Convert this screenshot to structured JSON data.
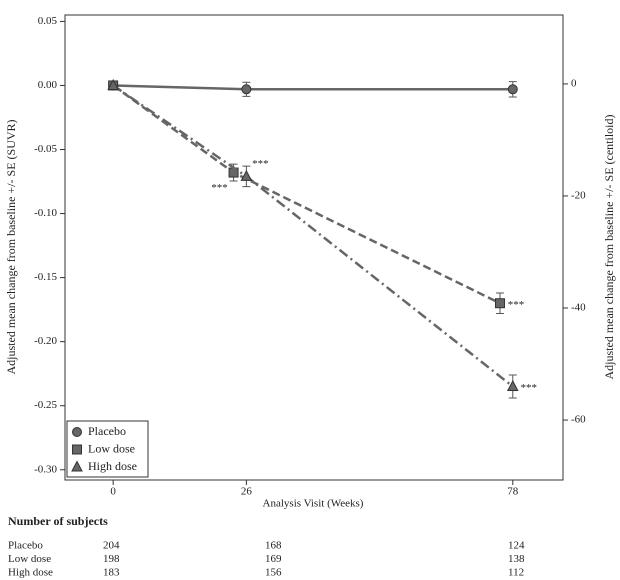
{
  "chart_data": {
    "type": "line",
    "ylabel": "Adjusted mean change from baseline +/- SE (SUVR)",
    "y2label": "Adjusted mean change from baseline +/- SE (centiloid)",
    "xlabel": "Analysis Visit (Weeks)",
    "xlim": [
      -9.4,
      87.8
    ],
    "xticks": [
      0,
      26,
      78
    ],
    "ylim": [
      -0.308,
      0.055
    ],
    "yticks": [
      0.05,
      {
        "value": 0,
        "label": "0.00"
      },
      -0.05,
      {
        "value": -0.1,
        "label": "-0.10"
      },
      -0.15,
      {
        "value": -0.2,
        "label": "-0.20"
      },
      -0.25,
      {
        "value": -0.3,
        "label": "-0.30"
      }
    ],
    "y2lim": [
      -70.7,
      12.3
    ],
    "y2ticks": [
      0,
      -20,
      -40,
      -60
    ],
    "legend": "lower left",
    "series": [
      {
        "name": "Placebo",
        "color": "#666666",
        "line_style": "solid",
        "marker": "circle",
        "x": [
          0,
          26,
          78
        ],
        "values": [
          0,
          -0.003,
          -0.003
        ],
        "errors": [
          null,
          0.0055,
          0.006
        ],
        "significance": [
          null,
          null,
          null
        ]
      },
      {
        "name": "Low dose",
        "color": "#666666",
        "line_style": "dashed",
        "marker": "square",
        "x": [
          0,
          23.5,
          75.5
        ],
        "values": [
          0,
          -0.068,
          -0.17
        ],
        "errors": [
          null,
          0.0066,
          0.008
        ],
        "significance": [
          null,
          "***",
          "***"
        ]
      },
      {
        "name": "High dose",
        "color": "#666666",
        "line_style": "dashdot",
        "marker": "triangle",
        "x": [
          0,
          26,
          78
        ],
        "values": [
          0,
          -0.071,
          -0.235
        ],
        "errors": [
          null,
          0.008,
          0.009
        ],
        "significance": [
          null,
          "***",
          "***"
        ]
      }
    ],
    "subjects": {
      "title": "Number of subjects",
      "rows": [
        {
          "name": "Placebo",
          "counts": [
            204,
            168,
            124
          ]
        },
        {
          "name": "Low dose",
          "counts": [
            198,
            169,
            138
          ]
        },
        {
          "name": "High dose",
          "counts": [
            183,
            156,
            112
          ]
        }
      ]
    }
  }
}
